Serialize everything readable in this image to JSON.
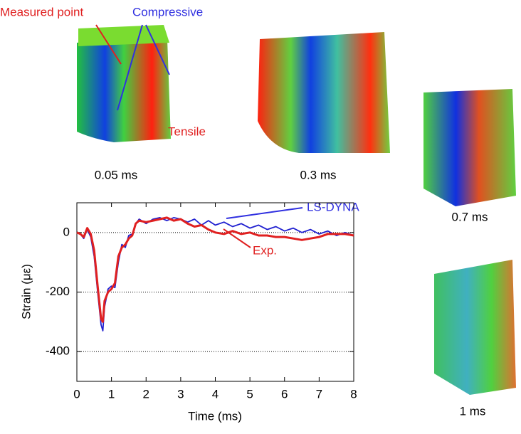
{
  "chart_data": {
    "type": "line",
    "xlabel": "Time (ms)",
    "ylabel": "Strain (με)",
    "x": [
      0,
      0.1,
      0.2,
      0.3,
      0.4,
      0.5,
      0.6,
      0.7,
      0.75,
      0.8,
      0.9,
      1.0,
      1.1,
      1.2,
      1.3,
      1.4,
      1.5,
      1.6,
      1.7,
      1.8,
      2.0,
      2.2,
      2.4,
      2.6,
      2.8,
      3.0,
      3.2,
      3.4,
      3.6,
      3.8,
      4.0,
      4.25,
      4.5,
      4.75,
      5.0,
      5.25,
      5.5,
      5.75,
      6.0,
      6.25,
      6.5,
      6.75,
      7.0,
      7.25,
      7.5,
      7.75,
      8.0
    ],
    "series": [
      {
        "name": "LS-DYNA",
        "color": "#2020d0",
        "values": [
          0,
          -5,
          -20,
          10,
          -15,
          -80,
          -200,
          -310,
          -330,
          -250,
          -190,
          -180,
          -185,
          -100,
          -40,
          -50,
          -10,
          -5,
          30,
          45,
          30,
          45,
          50,
          40,
          50,
          45,
          35,
          45,
          25,
          40,
          25,
          35,
          20,
          30,
          15,
          25,
          10,
          20,
          5,
          15,
          0,
          10,
          -5,
          5,
          -10,
          0,
          -10
        ]
      },
      {
        "name": "Exp.",
        "color": "#e02020",
        "values": [
          0,
          -5,
          -15,
          15,
          -5,
          -60,
          -180,
          -290,
          -300,
          -230,
          -200,
          -190,
          -170,
          -80,
          -50,
          -40,
          -20,
          -10,
          30,
          40,
          35,
          40,
          45,
          50,
          40,
          45,
          30,
          20,
          25,
          10,
          0,
          -5,
          5,
          -5,
          0,
          -10,
          -10,
          -15,
          -15,
          -20,
          -25,
          -20,
          -15,
          -5,
          -5,
          -5,
          -10
        ]
      }
    ],
    "xlim": [
      0,
      8
    ],
    "ylim": [
      -500,
      100
    ],
    "xticks": [
      0,
      1,
      2,
      3,
      4,
      5,
      6,
      7,
      8
    ],
    "yticks": [
      0,
      -200,
      -400
    ],
    "grid": true
  },
  "panels": {
    "measured_point": "Measured point",
    "compressive": "Compressive",
    "tensile": "Tensile",
    "captions": [
      "0.05 ms",
      "0.3 ms",
      "0.7 ms",
      "1 ms"
    ]
  }
}
